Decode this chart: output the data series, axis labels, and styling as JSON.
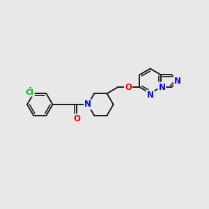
{
  "bg_color": "#e8e8e8",
  "bond_color": "#1a1a1a",
  "atom_colors": {
    "Cl": "#00bb00",
    "N": "#0000ee",
    "O": "#ee0000",
    "C": "#1a1a1a"
  },
  "bond_lw": 1.4,
  "font_size": 8.5
}
